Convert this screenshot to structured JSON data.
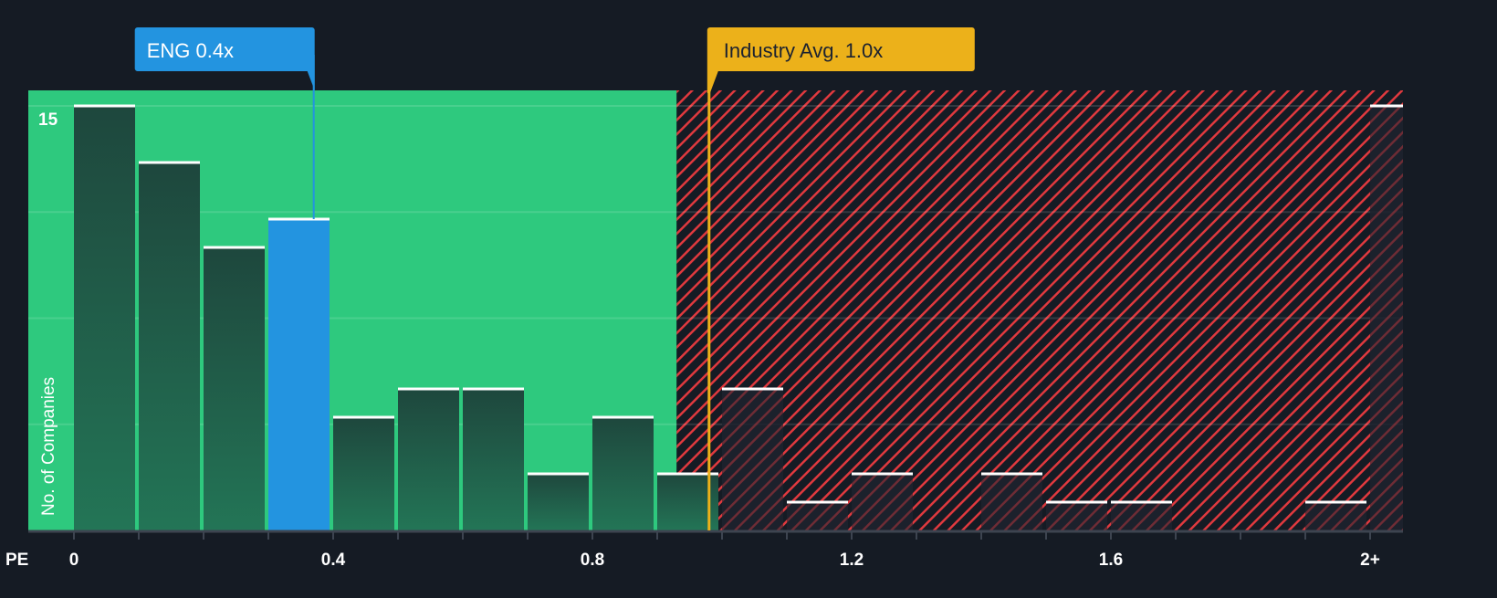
{
  "chart_data": {
    "type": "bar",
    "title": "",
    "xlabel": "PE",
    "ylabel": "No. of Companies",
    "bin_width": 0.1,
    "bins_start": [
      0,
      0.1,
      0.2,
      0.3,
      0.4,
      0.5,
      0.6,
      0.7,
      0.8,
      0.9,
      1.0,
      1.1,
      1.2,
      1.3,
      1.4,
      1.5,
      1.6,
      1.7,
      1.8,
      1.9,
      2.0
    ],
    "values": [
      15,
      13,
      10,
      11,
      4,
      5,
      5,
      2,
      4,
      2,
      5,
      1,
      2,
      0,
      2,
      1,
      1,
      0,
      0,
      1,
      15
    ],
    "highlight_bin_index": 3,
    "x_ticks": [
      {
        "value": 0,
        "label": "0"
      },
      {
        "value": 0.4,
        "label": "0.4"
      },
      {
        "value": 0.8,
        "label": "0.8"
      },
      {
        "value": 1.2,
        "label": "1.2"
      },
      {
        "value": 1.6,
        "label": "1.6"
      },
      {
        "value": 2.0,
        "label": "2+"
      }
    ],
    "y_ticks": [
      {
        "value": 15,
        "label": "15"
      }
    ],
    "ylim": [
      0,
      15.5
    ],
    "xlim": [
      -0.07,
      2.05
    ],
    "company": {
      "label": "ENG 0.4x",
      "value": 0.37
    },
    "industry": {
      "label": "Industry Avg. 1.0x",
      "value": 0.98
    },
    "fair_region_end": 0.93,
    "grid": true
  },
  "colors": {
    "background": "#151b24",
    "green": "#2ec97e",
    "bar": "#1f4a3f",
    "highlight": "#2394e0",
    "industry": "#ecb11a",
    "hatch": "#e0393e"
  }
}
